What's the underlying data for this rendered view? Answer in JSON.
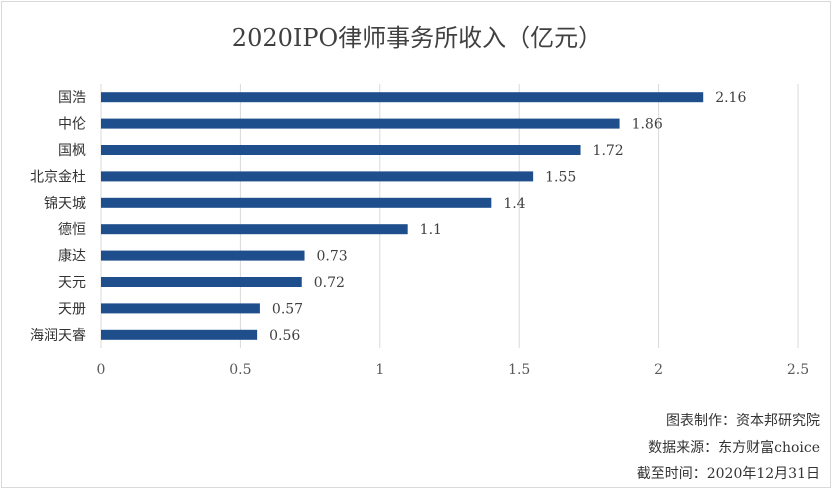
{
  "chart_data": {
    "type": "bar",
    "orientation": "horizontal",
    "title": "2020IPO律师事务所收入（亿元）",
    "categories": [
      "国浩",
      "中伦",
      "国枫",
      "北京金杜",
      "锦天城",
      "德恒",
      "康达",
      "天元",
      "天册",
      "海润天睿"
    ],
    "values": [
      2.16,
      1.86,
      1.72,
      1.55,
      1.4,
      1.1,
      0.73,
      0.72,
      0.57,
      0.56
    ],
    "value_labels": [
      "2.16",
      "1.86",
      "1.72",
      "1.55",
      "1.4",
      "1.1",
      "0.73",
      "0.72",
      "0.57",
      "0.56"
    ],
    "xlim": [
      0,
      2.5
    ],
    "x_ticks": [
      0,
      0.5,
      1,
      1.5,
      2,
      2.5
    ],
    "x_tick_labels": [
      "0",
      "0.5",
      "1",
      "1.5",
      "2",
      "2.5"
    ],
    "grid": "vertical",
    "legend": "none",
    "bar_color": "#1f4e8c",
    "grid_color": "#d9d9d9"
  },
  "footer": {
    "line1": "图表制作：资本邦研究院",
    "line2": "数据来源：东方财富choice",
    "line3": "截至时间：2020年12月31日"
  }
}
